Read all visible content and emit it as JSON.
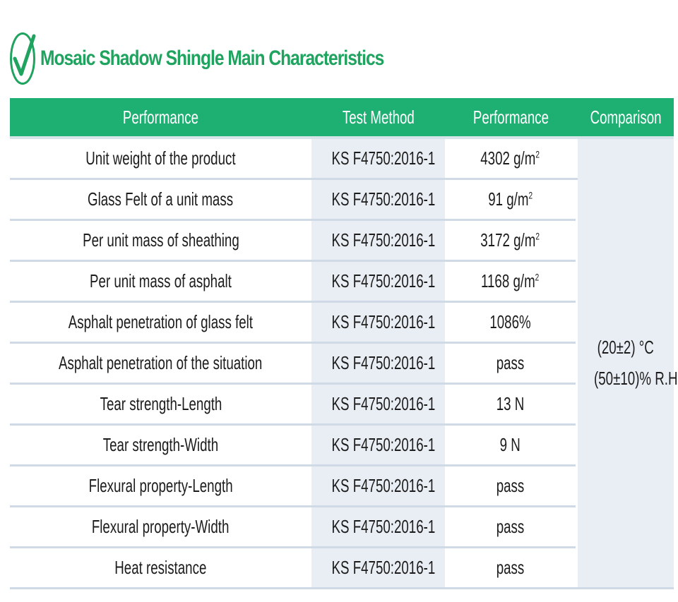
{
  "title": "Mosaic Shadow Shingle Main Characteristics",
  "colors": {
    "accent": "#1eb073",
    "title_text": "#1fa35f",
    "row_divider": "#d0dae6",
    "shaded_cell": "#e9edf4"
  },
  "icons": {
    "title_icon": "check-circle-icon"
  },
  "table": {
    "headers": [
      "Performance",
      "Test Method",
      "Performance",
      "Comparison"
    ],
    "comparison": {
      "line1": "(20±2) °C",
      "line2": "(50±10)% R.H"
    },
    "rows": [
      {
        "item": "Unit weight of the product",
        "method": "KS F4750:2016-1",
        "value": "4302 g/m",
        "sup": "2"
      },
      {
        "item": "Glass Felt of a unit mass",
        "method": "KS F4750:2016-1",
        "value": "91 g/m",
        "sup": "2"
      },
      {
        "item": "Per unit mass of sheathing",
        "method": "KS F4750:2016-1",
        "value": "3172 g/m",
        "sup": "2"
      },
      {
        "item": "Per unit mass of asphalt",
        "method": "KS F4750:2016-1",
        "value": "1168 g/m",
        "sup": "2"
      },
      {
        "item": "Asphalt penetration of glass felt",
        "method": "KS F4750:2016-1",
        "value": "1086%",
        "sup": ""
      },
      {
        "item": "Asphalt penetration of the situation",
        "method": "KS F4750:2016-1",
        "value": "pass",
        "sup": ""
      },
      {
        "item": "Tear strength-Length",
        "method": "KS F4750:2016-1",
        "value": "13 N",
        "sup": ""
      },
      {
        "item": "Tear strength-Width",
        "method": "KS F4750:2016-1",
        "value": "9 N",
        "sup": ""
      },
      {
        "item": "Flexural property-Length",
        "method": "KS F4750:2016-1",
        "value": "pass",
        "sup": ""
      },
      {
        "item": "Flexural property-Width",
        "method": "KS F4750:2016-1",
        "value": "pass",
        "sup": ""
      },
      {
        "item": "Heat resistance",
        "method": "KS F4750:2016-1",
        "value": "pass",
        "sup": ""
      }
    ]
  }
}
